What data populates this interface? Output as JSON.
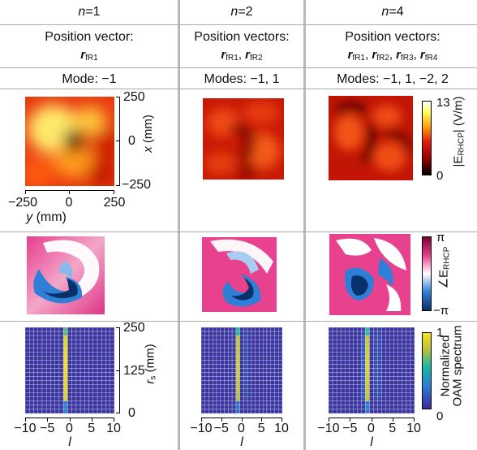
{
  "columns": [
    {
      "n": "n",
      "n_eq": "=1",
      "pos_title": "Position vector:",
      "vectors": [
        [
          "r",
          "fR1"
        ]
      ],
      "modes": "Mode: −1"
    },
    {
      "n": "n",
      "n_eq": "=2",
      "pos_title": "Position vectors:",
      "vectors": [
        [
          "r",
          "fR1"
        ],
        [
          "r",
          "fR2"
        ]
      ],
      "modes": "Modes: −1, 1"
    },
    {
      "n": "n",
      "n_eq": "=4",
      "pos_title": "Position vectors:",
      "vectors": [
        [
          "r",
          "fR1"
        ],
        [
          "r",
          "fR2"
        ],
        [
          "r",
          "fR3"
        ],
        [
          "r",
          "fR4"
        ]
      ],
      "modes": "Modes: −1, 1, −2, 2"
    }
  ],
  "amplitude_axes": {
    "x_ticks": [
      "250",
      "0",
      "−250"
    ],
    "x_label": "x",
    "x_unit": " (mm)",
    "y_ticks": [
      "−250",
      "0",
      "250"
    ],
    "y_label": "y",
    "y_unit": " (mm)"
  },
  "amplitude_colorbar": {
    "max": "13",
    "min": "0",
    "label_pre": "|E",
    "label_sub": "RHCP",
    "label_post": "| (V/m)"
  },
  "phase_colorbar": {
    "max": "π",
    "min": "−π",
    "label_pre": "∠E",
    "label_sub": "RHCP"
  },
  "spectrum_axes": {
    "x_ticks": [
      "−10",
      "−5",
      "0",
      "5",
      "10"
    ],
    "x_label": "l",
    "y_ticks": [
      "250",
      "125",
      "0"
    ],
    "y_label": "r",
    "y_sub": "s",
    "y_unit": " (mm)"
  },
  "spectrum_colorbar": {
    "max": "1",
    "min": "0",
    "label1": "Normalized",
    "label2": "OAM spectrum"
  },
  "colors": {
    "amplitude": [
      "#000000",
      "#8a0000",
      "#e31a0d",
      "#ff9e00",
      "#ffff5a",
      "#ffffff"
    ],
    "phase": [
      "#08306b",
      "#2f7fd6",
      "#ffffff",
      "#e83e8c",
      "#7a0036"
    ],
    "spectrum": [
      "#3b2a98",
      "#2a7fd6",
      "#14b9a6",
      "#b8c23a",
      "#f9e21a"
    ]
  },
  "chart_data": [
    {
      "type": "heatmap",
      "name": "OAM spectrum n=1",
      "xlim": [
        -10,
        10
      ],
      "ylim": [
        0,
        250
      ],
      "peaks": [
        {
          "l": -1,
          "value": 1.0
        }
      ]
    },
    {
      "type": "heatmap",
      "name": "OAM spectrum n=2",
      "xlim": [
        -10,
        10
      ],
      "ylim": [
        0,
        250
      ],
      "peaks": [
        {
          "l": -1,
          "value": 0.85
        },
        {
          "l": 1,
          "value": 0.1
        }
      ]
    },
    {
      "type": "heatmap",
      "name": "OAM spectrum n=4",
      "xlim": [
        -10,
        10
      ],
      "ylim": [
        0,
        250
      ],
      "peaks": [
        {
          "l": -1,
          "value": 0.9
        },
        {
          "l": 1,
          "value": 0.1
        },
        {
          "l": -2,
          "value": 0.15
        },
        {
          "l": 2,
          "value": 0.1
        }
      ]
    }
  ]
}
